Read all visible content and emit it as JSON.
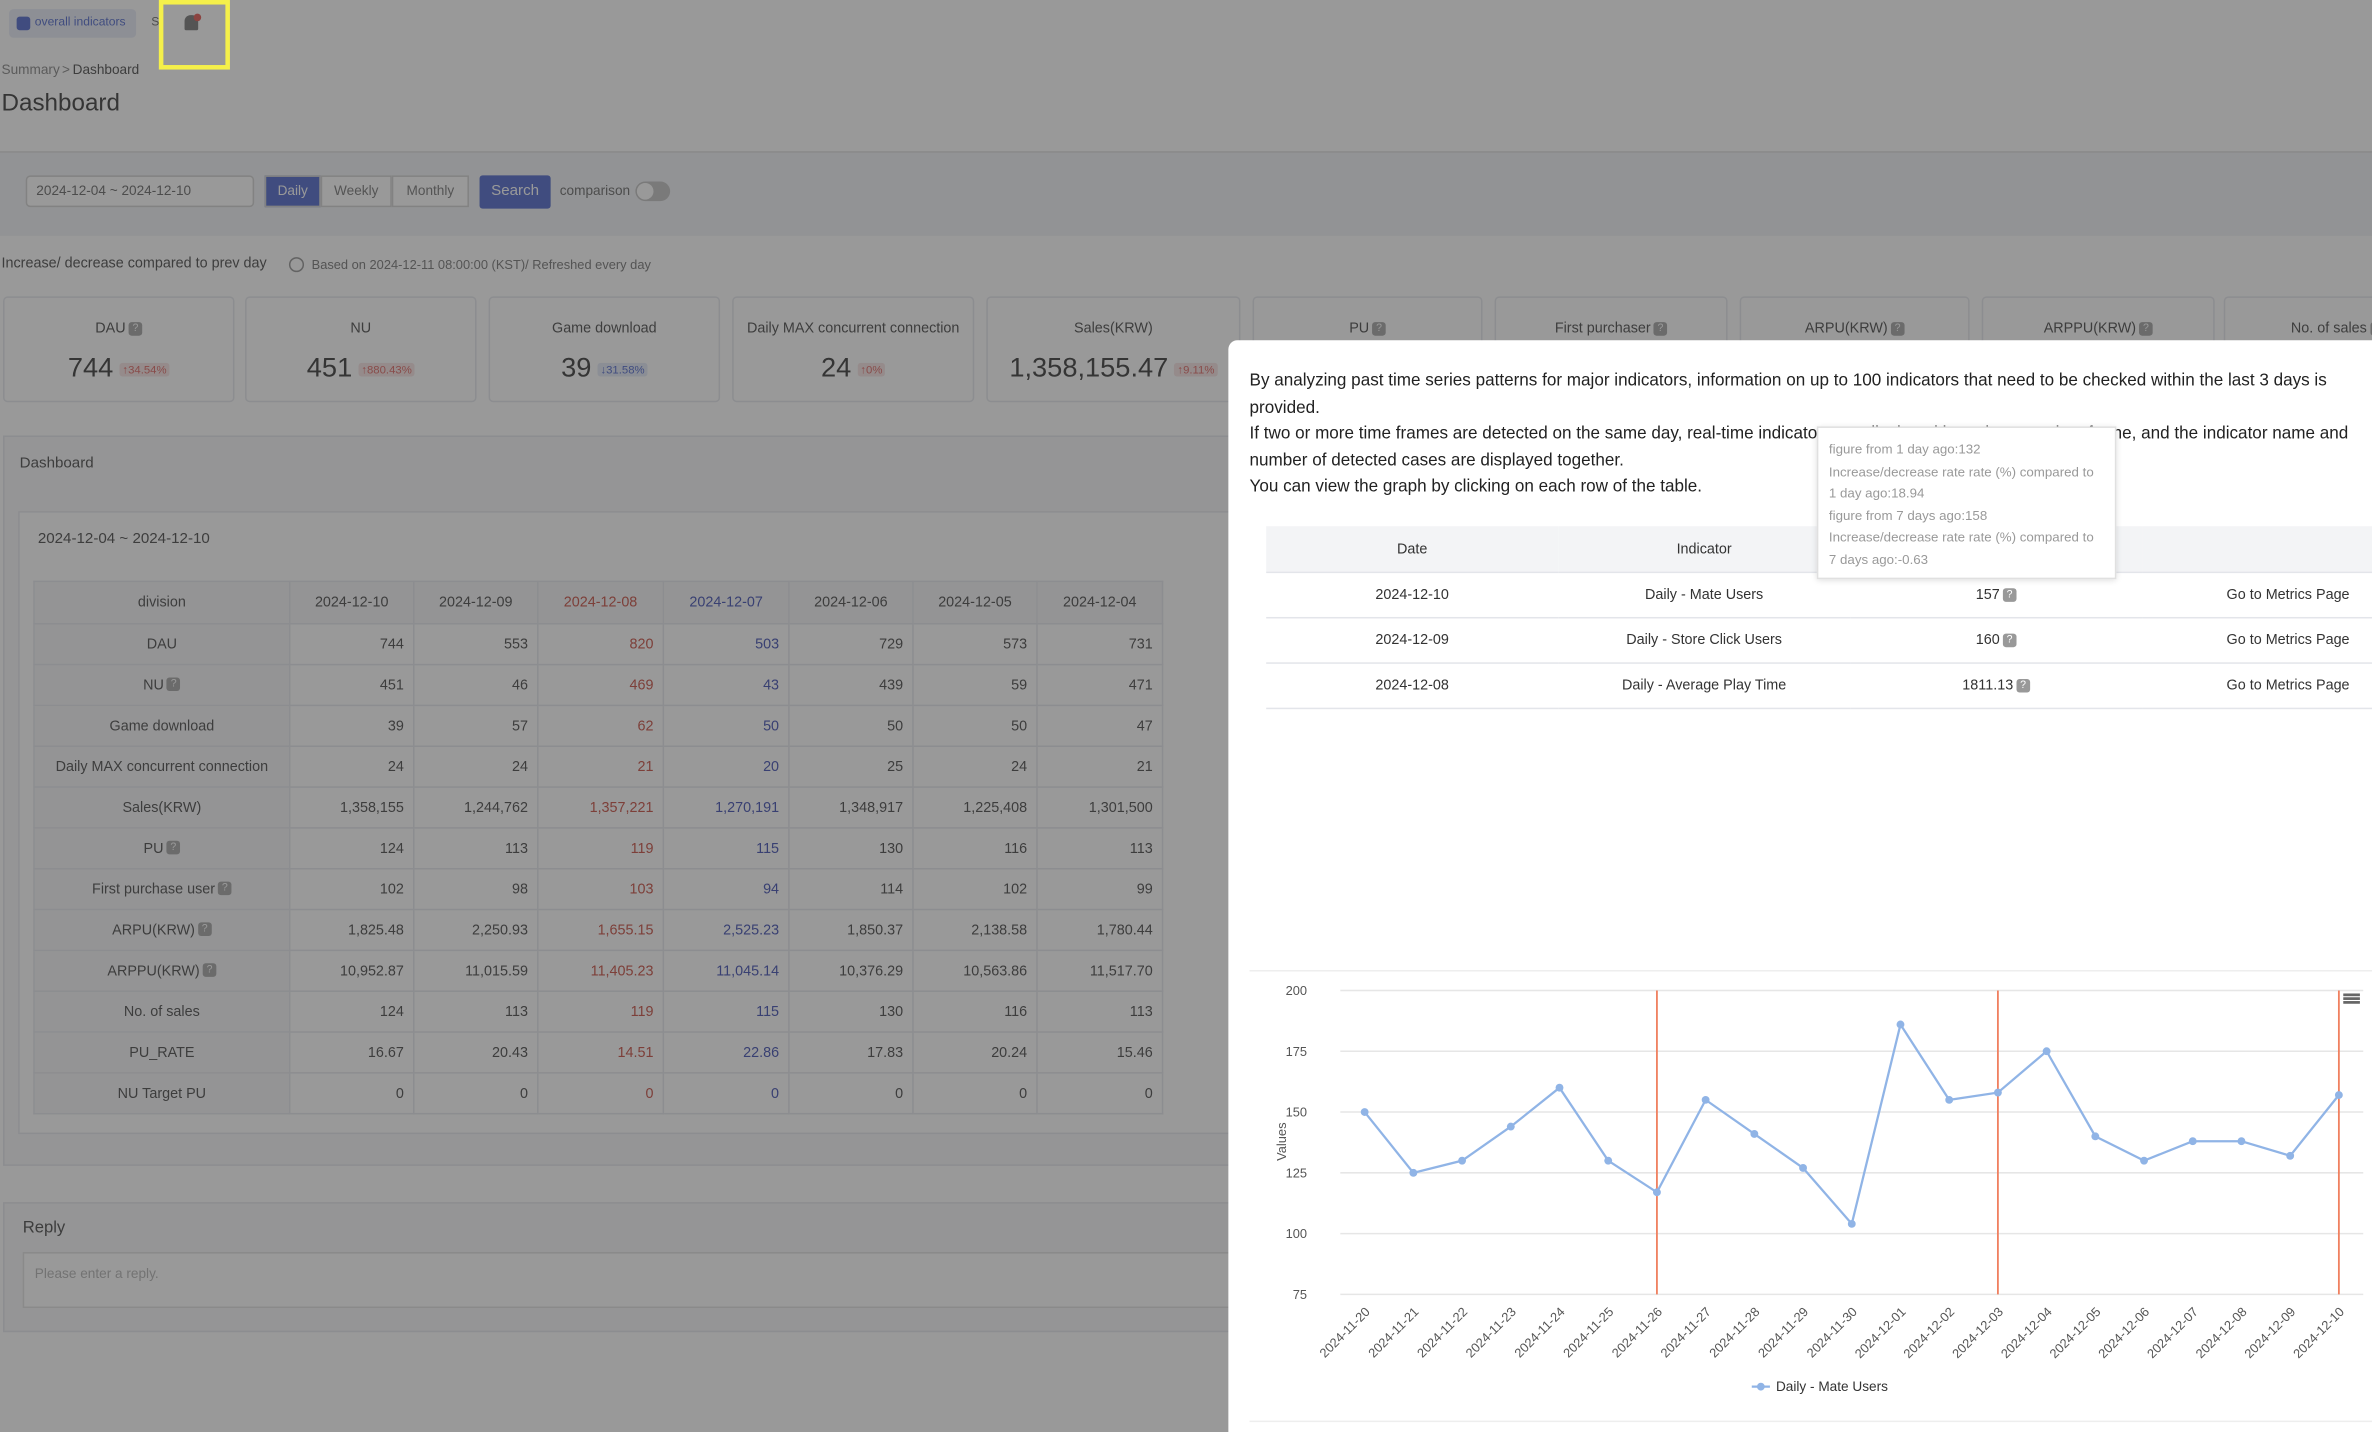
{
  "tabs": [
    "overall indicators",
    "S"
  ],
  "breadcrumb": [
    "Summary",
    "Dashboard"
  ],
  "title": "Dashboard",
  "filter": {
    "date_range": "2024-12-04 ~ 2024-12-10",
    "periods": [
      "Daily",
      "Weekly",
      "Monthly"
    ],
    "search": "Search",
    "comparison": "comparison"
  },
  "note": {
    "label": "Increase/ decrease compared to prev day",
    "basis": "Based on 2024-12-11 08:00:00 (KST)/ Refreshed every day"
  },
  "kpis": [
    {
      "label": "DAU",
      "value": "744",
      "change": "↑34.54%",
      "color": "#d9534f"
    },
    {
      "label": "NU",
      "value": "451",
      "change": "↑880.43%",
      "color": "#d9534f"
    },
    {
      "label": "Game download",
      "value": "39",
      "change": "↓31.58%",
      "color": "#3a56c5"
    },
    {
      "label": "Daily MAX concurrent connection",
      "value": "24",
      "change": "↑0%",
      "color": "#d9534f"
    },
    {
      "label": "Sales(KRW)",
      "value": "1,358,155.47",
      "change": "↑9.11%",
      "color": "#d9534f"
    },
    {
      "label": "PU"
    },
    {
      "label": "First purchaser"
    },
    {
      "label": "ARPU(KRW)"
    },
    {
      "label": "ARPPU(KRW)"
    },
    {
      "label": "No. of sales"
    }
  ],
  "panel": {
    "title": "Dashboard",
    "range": "2024-12-04 ~ 2024-12-10"
  },
  "table": {
    "columns": [
      {
        "label": "division",
        "color": "#333333"
      },
      {
        "label": "2024-12-10",
        "color": "#333333"
      },
      {
        "label": "2024-12-09",
        "color": "#333333"
      },
      {
        "label": "2024-12-08",
        "color": "#c0392b"
      },
      {
        "label": "2024-12-07",
        "color": "#2a3aa8"
      },
      {
        "label": "2024-12-06",
        "color": "#333333"
      },
      {
        "label": "2024-12-05",
        "color": "#333333"
      },
      {
        "label": "2024-12-04",
        "color": "#333333"
      }
    ],
    "rows": [
      {
        "label": "DAU",
        "help": false,
        "cells": [
          "744",
          "553",
          "820",
          "503",
          "729",
          "573",
          "731"
        ]
      },
      {
        "label": "NU",
        "help": true,
        "cells": [
          "451",
          "46",
          "469",
          "43",
          "439",
          "59",
          "471"
        ]
      },
      {
        "label": "Game download",
        "help": false,
        "cells": [
          "39",
          "57",
          "62",
          "50",
          "50",
          "50",
          "47"
        ]
      },
      {
        "label": "Daily MAX concurrent connection",
        "help": false,
        "cells": [
          "24",
          "24",
          "21",
          "20",
          "25",
          "24",
          "21"
        ]
      },
      {
        "label": "Sales(KRW)",
        "help": false,
        "cells": [
          "1,358,155",
          "1,244,762",
          "1,357,221",
          "1,270,191",
          "1,348,917",
          "1,225,408",
          "1,301,500"
        ]
      },
      {
        "label": "PU",
        "help": true,
        "cells": [
          "124",
          "113",
          "119",
          "115",
          "130",
          "116",
          "113"
        ]
      },
      {
        "label": "First purchase user",
        "help": true,
        "cells": [
          "102",
          "98",
          "103",
          "94",
          "114",
          "102",
          "99"
        ]
      },
      {
        "label": "ARPU(KRW)",
        "help": true,
        "cells": [
          "1,825.48",
          "2,250.93",
          "1,655.15",
          "2,525.23",
          "1,850.37",
          "2,138.58",
          "1,780.44"
        ]
      },
      {
        "label": "ARPPU(KRW)",
        "help": true,
        "cells": [
          "10,952.87",
          "11,015.59",
          "11,405.23",
          "11,045.14",
          "10,376.29",
          "10,563.86",
          "11,517.70"
        ]
      },
      {
        "label": "No. of sales",
        "help": false,
        "cells": [
          "124",
          "113",
          "119",
          "115",
          "130",
          "116",
          "113"
        ]
      },
      {
        "label": "PU_RATE",
        "help": false,
        "cells": [
          "16.67",
          "20.43",
          "14.51",
          "22.86",
          "17.83",
          "20.24",
          "15.46"
        ]
      },
      {
        "label": "NU Target PU",
        "help": false,
        "cells": [
          "0",
          "0",
          "0",
          "0",
          "0",
          "0",
          "0"
        ]
      }
    ]
  },
  "reply": {
    "title": "Reply",
    "placeholder": "Please enter a reply."
  },
  "modal": {
    "description": [
      "By analyzing past time series patterns for major indicators, information on up to 100 indicators that need to be checked within the last 3 days is provided.",
      "If two or more time frames are detected on the same day, real-time indicators are displayed based on one time frame, and the indicator name and number of detected cases are displayed together.",
      "You can view the graph by clicking on each row of the table."
    ],
    "tooltip": [
      "figure from 1 day ago:132",
      "Increase/decrease rate rate (%) compared to 1 day ago:18.94",
      "figure from 7 days ago:158",
      "Increase/decrease rate rate (%) compared to 7 days ago:-0.63"
    ],
    "table": {
      "headers": [
        "Date",
        "Indicator"
      ],
      "rows": [
        [
          "2024-12-10",
          "Daily - Mate Users",
          "157",
          "Go to Metrics Page"
        ],
        [
          "2024-12-09",
          "Daily - Store Click Users",
          "160",
          "Go to Metrics Page"
        ],
        [
          "2024-12-08",
          "Daily - Average Play Time",
          "1811.13",
          "Go to Metrics Page"
        ]
      ]
    }
  },
  "chart_data": {
    "type": "line",
    "ylabel": "Values",
    "x": [
      "2024-11-20",
      "2024-11-21",
      "2024-11-22",
      "2024-11-23",
      "2024-11-24",
      "2024-11-25",
      "2024-11-26",
      "2024-11-27",
      "2024-11-28",
      "2024-11-29",
      "2024-11-30",
      "2024-12-01",
      "2024-12-02",
      "2024-12-03",
      "2024-12-04",
      "2024-12-05",
      "2024-12-06",
      "2024-12-07",
      "2024-12-08",
      "2024-12-09",
      "2024-12-10"
    ],
    "series": [
      {
        "name": "Daily - Mate Users",
        "color": "#90b4e6",
        "values": [
          150,
          125,
          130,
          144,
          160,
          130,
          117,
          155,
          141,
          127,
          104,
          186,
          155,
          158,
          175,
          140,
          130,
          138,
          138,
          132,
          157
        ]
      }
    ],
    "highlight": [
      "2024-11-26",
      "2024-12-03",
      "2024-12-10"
    ],
    "highlight_color": "#f08060",
    "ylim": [
      75,
      200
    ],
    "yticks": [
      75,
      100,
      125,
      150,
      175,
      200
    ],
    "grid": true
  }
}
